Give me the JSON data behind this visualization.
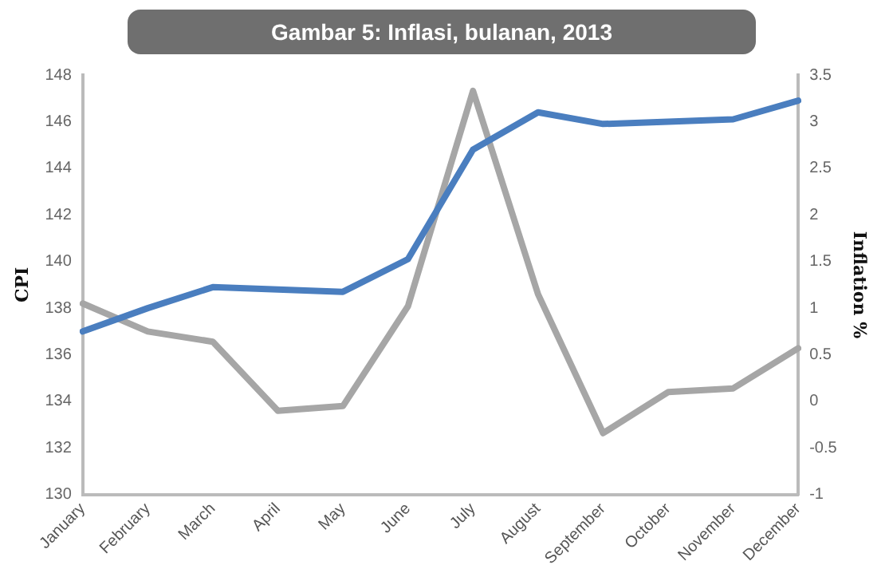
{
  "chart_data": {
    "type": "line",
    "title": "Gambar 5: Inflasi, bulanan, 2013",
    "ylabel": "CPI",
    "y2label": "Inflation %",
    "categories": [
      "January",
      "February",
      "March",
      "April",
      "May",
      "June",
      "July",
      "August",
      "September",
      "October",
      "November",
      "December"
    ],
    "series": [
      {
        "color": "#4a7ebf",
        "values": [
          137.0,
          138.0,
          138.9,
          138.8,
          138.7,
          140.1,
          144.8,
          146.4,
          145.9,
          146.0,
          146.1,
          146.9
        ]
      },
      {
        "color": "#a6a6a6",
        "axis": "y2",
        "values": [
          1.05,
          0.75,
          0.64,
          -0.1,
          -0.05,
          1.02,
          3.33,
          1.15,
          -0.34,
          0.1,
          0.14,
          0.57
        ]
      }
    ],
    "ylim": [
      130,
      148
    ],
    "yticks": [
      130,
      132,
      134,
      136,
      138,
      140,
      142,
      144,
      146,
      148
    ],
    "y2lim": [
      -1,
      3.5
    ],
    "y2ticks": [
      -1,
      -0.5,
      0,
      0.5,
      1,
      1.5,
      2,
      2.5,
      3,
      3.5
    ],
    "grid": false,
    "legend": false,
    "marker": "none",
    "line_style": "solid"
  }
}
